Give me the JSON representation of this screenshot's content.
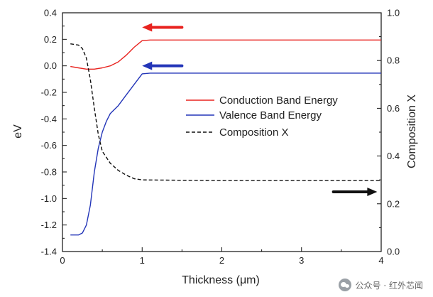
{
  "chart_data": {
    "type": "line",
    "xlabel": "Thickness (μm)",
    "ylabel": "eV",
    "y2label": "Composition X",
    "xlim": [
      0,
      4
    ],
    "ylim": [
      -1.4,
      0.4
    ],
    "y2lim": [
      0.0,
      1.0
    ],
    "xticks": [
      "0",
      "1",
      "2",
      "3",
      "4"
    ],
    "yticks": [
      "-1.4",
      "-1.2",
      "-1.0",
      "-0.8",
      "-0.6",
      "-0.4",
      "-0.2",
      "0.0",
      "0.2",
      "0.4"
    ],
    "y2ticks": [
      "0.0",
      "0.2",
      "0.4",
      "0.6",
      "0.8",
      "1.0"
    ],
    "grid": false,
    "legend_position": "right-middle",
    "series": [
      {
        "name": "Conduction Band Energy",
        "axis": "left",
        "color": "#e8231f",
        "style": "solid",
        "points": [
          [
            0.1,
            -0.005
          ],
          [
            0.2,
            -0.015
          ],
          [
            0.3,
            -0.025
          ],
          [
            0.4,
            -0.025
          ],
          [
            0.5,
            -0.015
          ],
          [
            0.6,
            0.0
          ],
          [
            0.7,
            0.03
          ],
          [
            0.8,
            0.08
          ],
          [
            0.9,
            0.14
          ],
          [
            1.0,
            0.19
          ],
          [
            1.1,
            0.195
          ],
          [
            2.0,
            0.195
          ],
          [
            3.0,
            0.195
          ],
          [
            4.0,
            0.195
          ]
        ]
      },
      {
        "name": "Valence Band Energy",
        "axis": "left",
        "color": "#2335b8",
        "style": "solid",
        "points": [
          [
            0.1,
            -1.275
          ],
          [
            0.2,
            -1.275
          ],
          [
            0.25,
            -1.26
          ],
          [
            0.3,
            -1.2
          ],
          [
            0.35,
            -1.05
          ],
          [
            0.4,
            -0.8
          ],
          [
            0.45,
            -0.62
          ],
          [
            0.5,
            -0.5
          ],
          [
            0.55,
            -0.42
          ],
          [
            0.6,
            -0.36
          ],
          [
            0.7,
            -0.3
          ],
          [
            0.8,
            -0.22
          ],
          [
            0.9,
            -0.14
          ],
          [
            1.0,
            -0.06
          ],
          [
            1.1,
            -0.055
          ],
          [
            2.0,
            -0.055
          ],
          [
            3.0,
            -0.055
          ],
          [
            4.0,
            -0.055
          ]
        ]
      },
      {
        "name": "Composition X",
        "axis": "right",
        "color": "#111111",
        "style": "dashed",
        "points": [
          [
            0.1,
            0.87
          ],
          [
            0.2,
            0.865
          ],
          [
            0.25,
            0.85
          ],
          [
            0.3,
            0.81
          ],
          [
            0.35,
            0.72
          ],
          [
            0.4,
            0.6
          ],
          [
            0.45,
            0.49
          ],
          [
            0.5,
            0.42
          ],
          [
            0.6,
            0.37
          ],
          [
            0.7,
            0.34
          ],
          [
            0.8,
            0.32
          ],
          [
            0.9,
            0.305
          ],
          [
            1.0,
            0.3
          ],
          [
            2.0,
            0.297
          ],
          [
            3.0,
            0.297
          ],
          [
            4.0,
            0.297
          ]
        ]
      }
    ],
    "annotations": [
      {
        "type": "arrow",
        "direction": "left",
        "color": "#e8231f",
        "x_from": 1.5,
        "x_to": 1.0,
        "y": 0.29,
        "axis": "left"
      },
      {
        "type": "arrow",
        "direction": "left",
        "color": "#2335b8",
        "x_from": 1.5,
        "x_to": 1.0,
        "y": 0.0,
        "axis": "left"
      },
      {
        "type": "arrow",
        "direction": "right",
        "color": "#111111",
        "x_from": 3.4,
        "x_to": 3.95,
        "y": 0.25,
        "axis": "right"
      }
    ]
  },
  "watermark": {
    "text": "公众号 · 红外芯闻",
    "icon": "wechat-icon"
  }
}
